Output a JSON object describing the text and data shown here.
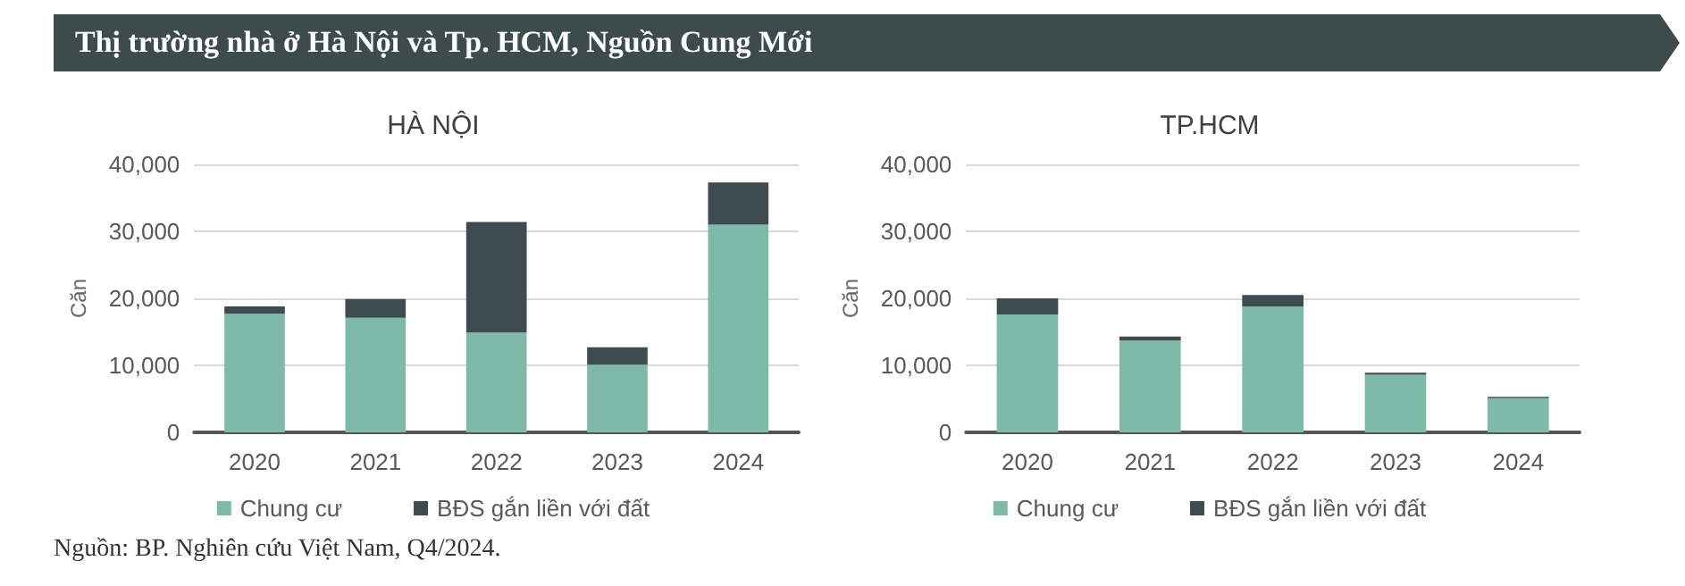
{
  "chart_data": [
    {
      "type": "bar",
      "title": "HÀ NỘI",
      "ylabel": "Căn",
      "stacked": true,
      "categories": [
        "2020",
        "2021",
        "2022",
        "2023",
        "2024"
      ],
      "series": [
        {
          "name": "Chung cư",
          "color": "#7fbaa8",
          "values": [
            17700,
            17100,
            14900,
            10100,
            31000
          ]
        },
        {
          "name": "BĐS gắn liền với đất",
          "color": "#3f4c4f",
          "values": [
            1100,
            2800,
            16500,
            2600,
            6300
          ]
        }
      ],
      "ylim": [
        0,
        40000
      ],
      "yticks": [
        {
          "value": 0,
          "label": "0"
        },
        {
          "value": 10000,
          "label": "10,000"
        },
        {
          "value": 20000,
          "label": "20,000"
        },
        {
          "value": 30000,
          "label": "30,000"
        },
        {
          "value": 40000,
          "label": "40,000"
        }
      ],
      "grid": "y",
      "legend": "bottom",
      "annotations": [
        "Thị trường nhà ở Hà Nội và Tp. HCM, Nguồn Cung Mới",
        "Nguồn: BP. Nghiên cứu Việt Nam, Q4/2024."
      ]
    },
    {
      "type": "bar",
      "title": "TP.HCM",
      "ylabel": "Căn",
      "stacked": true,
      "categories": [
        "2020",
        "2021",
        "2022",
        "2023",
        "2024"
      ],
      "series": [
        {
          "name": "Chung cư",
          "color": "#7fbaa8",
          "values": [
            17600,
            13700,
            18800,
            8600,
            5100
          ]
        },
        {
          "name": "BĐS gắn liền với đất",
          "color": "#3f4c4f",
          "values": [
            2400,
            600,
            1700,
            300,
            200
          ]
        }
      ],
      "ylim": [
        0,
        40000
      ],
      "yticks": [
        {
          "value": 0,
          "label": "0"
        },
        {
          "value": 10000,
          "label": "10,000"
        },
        {
          "value": 20000,
          "label": "20,000"
        },
        {
          "value": 30000,
          "label": "30,000"
        },
        {
          "value": 40000,
          "label": "40,000"
        }
      ],
      "grid": "y",
      "legend": "bottom"
    }
  ]
}
